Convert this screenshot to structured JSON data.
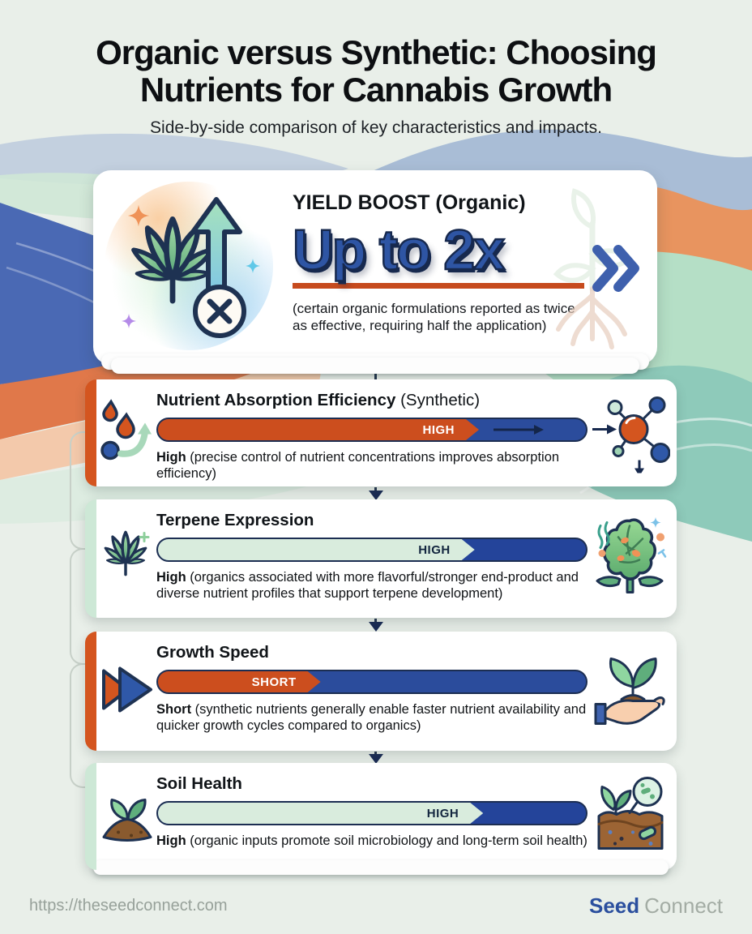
{
  "page": {
    "title_line1": "Organic versus Synthetic: Choosing",
    "title_line2": "Nutrients for Cannabis Growth",
    "subtitle": "Side-by-side comparison of key characteristics and impacts."
  },
  "hero": {
    "label_bold": "YIELD BOOST",
    "label_suffix": " (Organic)",
    "value": "Up to 2x",
    "caption": "(certain organic formulations reported as twice as effective, requiring half the application)",
    "underline_color": "#c64a1d",
    "chevron_color": "#3e60ad",
    "left_icon": "cannabis-leaf-growth-arrow-icon",
    "right_icon": "plant-roots-watermark-icon"
  },
  "cards": [
    {
      "title_bold": "Nutrient Absorption Efficiency",
      "title_suffix": " (Synthetic)",
      "bar": {
        "label": "HIGH",
        "fill_percent": 75,
        "fill_color": "#cc4e1e",
        "track_color": "#2b4c9c",
        "label_color": "#ffffff",
        "inner_arrow": true
      },
      "desc_bold": "High",
      "desc_rest": " (precise control of nutrient concentrations improves absorption efficiency)",
      "accent": "#d4551f",
      "left_icon": "nutrient-droplets-icon",
      "right_icon": "molecule-icon"
    },
    {
      "title_bold": "Terpene Expression",
      "title_suffix": "",
      "bar": {
        "label": "HIGH",
        "fill_percent": 74,
        "fill_color": "#d9ecdd",
        "track_color": "#24449a",
        "label_color": "#13263f",
        "inner_arrow": false
      },
      "desc_bold": "High",
      "desc_rest": " (organics associated with more flavorful/stronger end-product and diverse nutrient profiles that support terpene development)",
      "accent": "#cde8d6",
      "left_icon": "cannabis-leaf-icon",
      "right_icon": "cannabis-bud-icon"
    },
    {
      "title_bold": "Growth Speed",
      "title_suffix": "",
      "bar": {
        "label": "SHORT",
        "fill_percent": 38,
        "fill_color": "#cc4e1e",
        "track_color": "#2b4c9c",
        "label_color": "#ffffff",
        "inner_arrow": false
      },
      "desc_bold": "Short",
      "desc_rest": " (synthetic nutrients generally enable faster nutrient availability and quicker growth cycles compared to organics)",
      "accent": "#d4551f",
      "left_icon": "fast-forward-icon",
      "right_icon": "hand-seedling-icon"
    },
    {
      "title_bold": "Soil Health",
      "title_suffix": "",
      "bar": {
        "label": "HIGH",
        "fill_percent": 76,
        "fill_color": "#d9ecdd",
        "track_color": "#24449a",
        "label_color": "#13263f",
        "inner_arrow": false
      },
      "desc_bold": "High",
      "desc_rest": " (organic inputs promote soil microbiology and long-term soil health)",
      "accent": "#cde8d6",
      "left_icon": "sprout-soil-icon",
      "right_icon": "soil-microbes-icon"
    }
  ],
  "footer": {
    "url": "https://theseedconnect.com",
    "brand_bold": "Seed",
    "brand_light": "Connect"
  },
  "colors": {
    "background": "#e9efe9",
    "bar_outline": "#1c2e52",
    "wave_blue": "#4a69b4",
    "wave_bluegray": "#a9bdd6",
    "wave_orange": "#e8945f",
    "wave_peach": "#f3c9ab",
    "wave_mint": "#b5dfc6",
    "wave_teal": "#8ecaba"
  },
  "chart_data": {
    "type": "bar",
    "title": "Organic versus Synthetic: Choosing Nutrients for Cannabis Growth",
    "categories": [
      "Yield Boost (Organic)",
      "Nutrient Absorption Efficiency (Synthetic)",
      "Terpene Expression",
      "Growth Speed",
      "Soil Health"
    ],
    "values_text": [
      "Up to 2x",
      "High",
      "High",
      "Short",
      "High"
    ],
    "fill_percent": [
      null,
      75,
      74,
      38,
      76
    ],
    "bar_labels": [
      null,
      "HIGH",
      "HIGH",
      "SHORT",
      "HIGH"
    ],
    "legend_position": "none"
  }
}
